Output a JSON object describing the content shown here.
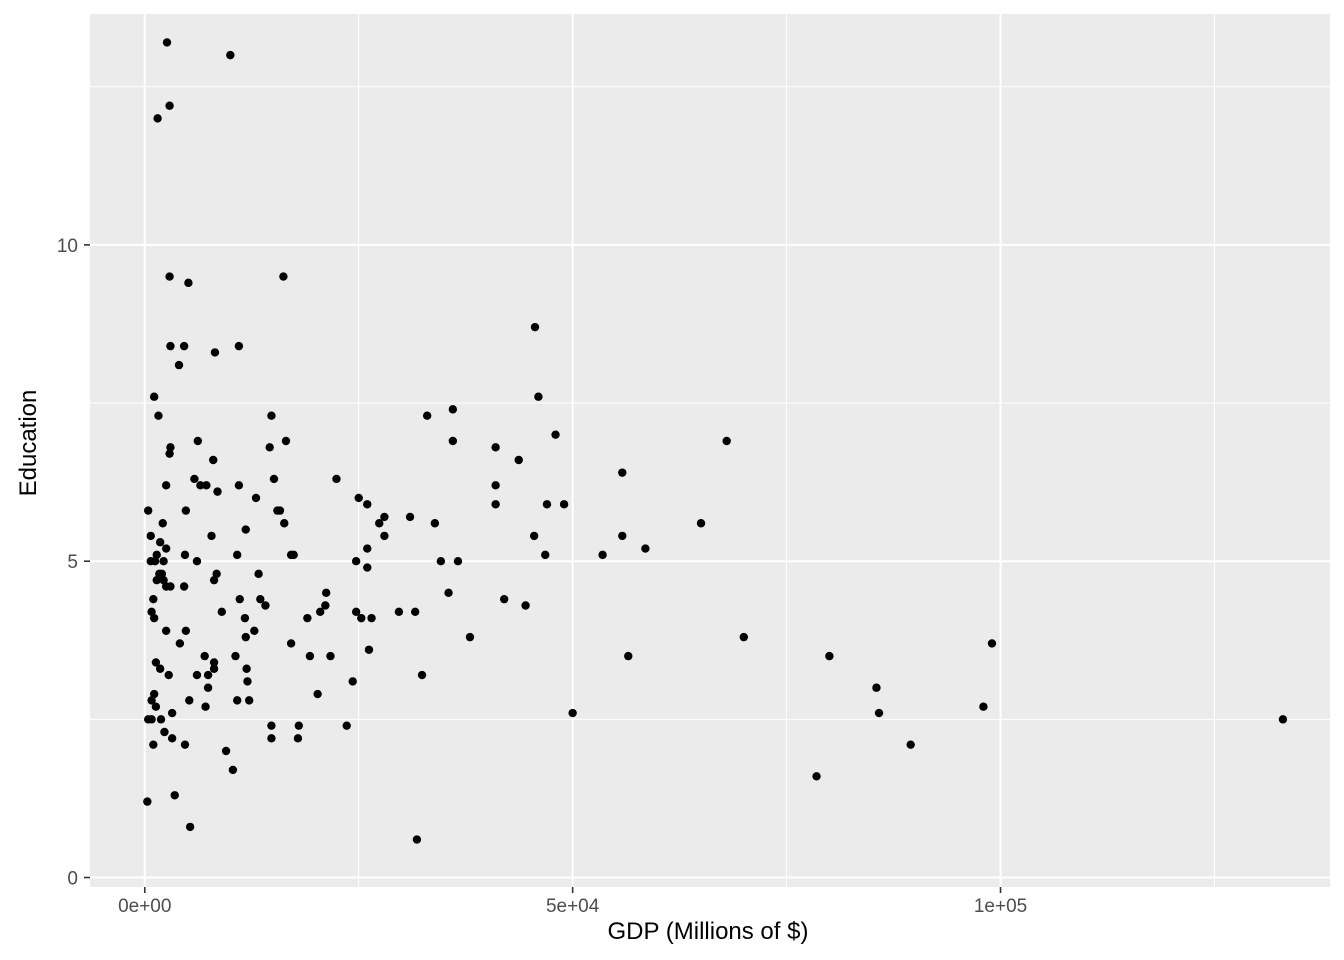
{
  "chart_data": {
    "type": "scatter",
    "title": "",
    "xlabel": "GDP (Millions of $)",
    "ylabel": "Education",
    "xlim": [
      -6400,
      138500
    ],
    "ylim": [
      -0.15,
      13.65
    ],
    "x_ticks": [
      {
        "value": 0,
        "label": "0e+00"
      },
      {
        "value": 50000,
        "label": "5e+04"
      },
      {
        "value": 100000,
        "label": "1e+05"
      }
    ],
    "y_ticks": [
      {
        "value": 0,
        "label": "0"
      },
      {
        "value": 5,
        "label": "5"
      },
      {
        "value": 10,
        "label": "10"
      }
    ],
    "x_minor_grid": [
      -25000,
      25000,
      75000,
      125000
    ],
    "y_minor_grid": [
      2.5,
      7.5,
      12.5
    ],
    "grid": true,
    "panel_color": "#ebebeb",
    "grid_color": "#ffffff",
    "point_color": "#000000",
    "points": [
      [
        2600,
        13.2
      ],
      [
        10000,
        13.0
      ],
      [
        2900,
        12.2
      ],
      [
        1500,
        12.0
      ],
      [
        2900,
        9.5
      ],
      [
        5100,
        9.4
      ],
      [
        16200,
        9.5
      ],
      [
        45600,
        8.7
      ],
      [
        3000,
        8.4
      ],
      [
        4600,
        8.4
      ],
      [
        11000,
        8.4
      ],
      [
        8200,
        8.3
      ],
      [
        4000,
        8.1
      ],
      [
        1100,
        7.6
      ],
      [
        46000,
        7.6
      ],
      [
        1600,
        7.3
      ],
      [
        14800,
        7.3
      ],
      [
        33000,
        7.3
      ],
      [
        36000,
        7.4
      ],
      [
        48000,
        7.0
      ],
      [
        6200,
        6.9
      ],
      [
        16500,
        6.9
      ],
      [
        36000,
        6.9
      ],
      [
        68000,
        6.9
      ],
      [
        3000,
        6.8
      ],
      [
        2900,
        6.7
      ],
      [
        14600,
        6.8
      ],
      [
        41000,
        6.8
      ],
      [
        43700,
        6.6
      ],
      [
        8000,
        6.6
      ],
      [
        55800,
        6.4
      ],
      [
        5800,
        6.3
      ],
      [
        15100,
        6.3
      ],
      [
        22400,
        6.3
      ],
      [
        2500,
        6.2
      ],
      [
        6500,
        6.2
      ],
      [
        7200,
        6.2
      ],
      [
        11000,
        6.2
      ],
      [
        41000,
        6.2
      ],
      [
        8500,
        6.1
      ],
      [
        25000,
        6.0
      ],
      [
        13000,
        6.0
      ],
      [
        26000,
        5.9
      ],
      [
        41000,
        5.9
      ],
      [
        47000,
        5.9
      ],
      [
        49000,
        5.9
      ],
      [
        400,
        5.8
      ],
      [
        4800,
        5.8
      ],
      [
        15500,
        5.8
      ],
      [
        15800,
        5.8
      ],
      [
        28000,
        5.7
      ],
      [
        27400,
        5.6
      ],
      [
        31000,
        5.7
      ],
      [
        2100,
        5.6
      ],
      [
        16300,
        5.6
      ],
      [
        33900,
        5.6
      ],
      [
        65000,
        5.6
      ],
      [
        11800,
        5.5
      ],
      [
        700,
        5.4
      ],
      [
        7800,
        5.4
      ],
      [
        28000,
        5.4
      ],
      [
        45500,
        5.4
      ],
      [
        55800,
        5.4
      ],
      [
        1800,
        5.3
      ],
      [
        2500,
        5.2
      ],
      [
        26000,
        5.2
      ],
      [
        58500,
        5.2
      ],
      [
        1400,
        5.1
      ],
      [
        4700,
        5.1
      ],
      [
        10800,
        5.1
      ],
      [
        17100,
        5.1
      ],
      [
        17400,
        5.1
      ],
      [
        46800,
        5.1
      ],
      [
        53500,
        5.1
      ],
      [
        700,
        5.0
      ],
      [
        1200,
        5.0
      ],
      [
        2200,
        5.0
      ],
      [
        6100,
        5.0
      ],
      [
        24700,
        5.0
      ],
      [
        34600,
        5.0
      ],
      [
        36600,
        5.0
      ],
      [
        26000,
        4.9
      ],
      [
        1700,
        4.8
      ],
      [
        2000,
        4.8
      ],
      [
        8400,
        4.8
      ],
      [
        13300,
        4.8
      ],
      [
        1400,
        4.7
      ],
      [
        2200,
        4.7
      ],
      [
        8100,
        4.7
      ],
      [
        2500,
        4.6
      ],
      [
        3000,
        4.6
      ],
      [
        4600,
        4.6
      ],
      [
        21200,
        4.5
      ],
      [
        35500,
        4.5
      ],
      [
        1000,
        4.4
      ],
      [
        11100,
        4.4
      ],
      [
        13500,
        4.4
      ],
      [
        42000,
        4.4
      ],
      [
        14100,
        4.3
      ],
      [
        21100,
        4.3
      ],
      [
        44500,
        4.3
      ],
      [
        800,
        4.2
      ],
      [
        9000,
        4.2
      ],
      [
        20500,
        4.2
      ],
      [
        24700,
        4.2
      ],
      [
        29700,
        4.2
      ],
      [
        31600,
        4.2
      ],
      [
        1100,
        4.1
      ],
      [
        11700,
        4.1
      ],
      [
        19000,
        4.1
      ],
      [
        25300,
        4.1
      ],
      [
        26500,
        4.1
      ],
      [
        2500,
        3.9
      ],
      [
        4800,
        3.9
      ],
      [
        12800,
        3.9
      ],
      [
        11800,
        3.8
      ],
      [
        38000,
        3.8
      ],
      [
        70000,
        3.8
      ],
      [
        4100,
        3.7
      ],
      [
        17100,
        3.7
      ],
      [
        99000,
        3.7
      ],
      [
        26200,
        3.6
      ],
      [
        7000,
        3.5
      ],
      [
        10600,
        3.5
      ],
      [
        19300,
        3.5
      ],
      [
        21700,
        3.5
      ],
      [
        56500,
        3.5
      ],
      [
        80000,
        3.5
      ],
      [
        1300,
        3.4
      ],
      [
        8100,
        3.4
      ],
      [
        1800,
        3.3
      ],
      [
        8100,
        3.3
      ],
      [
        11900,
        3.3
      ],
      [
        2800,
        3.2
      ],
      [
        6100,
        3.2
      ],
      [
        7400,
        3.2
      ],
      [
        32400,
        3.2
      ],
      [
        12000,
        3.1
      ],
      [
        24300,
        3.1
      ],
      [
        7400,
        3.0
      ],
      [
        85500,
        3.0
      ],
      [
        1100,
        2.9
      ],
      [
        20200,
        2.9
      ],
      [
        800,
        2.8
      ],
      [
        5200,
        2.8
      ],
      [
        10800,
        2.8
      ],
      [
        12200,
        2.8
      ],
      [
        1300,
        2.7
      ],
      [
        7100,
        2.7
      ],
      [
        98000,
        2.7
      ],
      [
        3200,
        2.6
      ],
      [
        50000,
        2.6
      ],
      [
        85800,
        2.6
      ],
      [
        400,
        2.5
      ],
      [
        800,
        2.5
      ],
      [
        1900,
        2.5
      ],
      [
        133000,
        2.5
      ],
      [
        14800,
        2.4
      ],
      [
        18000,
        2.4
      ],
      [
        23600,
        2.4
      ],
      [
        2300,
        2.3
      ],
      [
        3200,
        2.2
      ],
      [
        14800,
        2.2
      ],
      [
        17900,
        2.2
      ],
      [
        1000,
        2.1
      ],
      [
        4700,
        2.1
      ],
      [
        89500,
        2.1
      ],
      [
        9500,
        2.0
      ],
      [
        10300,
        1.7
      ],
      [
        78500,
        1.6
      ],
      [
        3500,
        1.3
      ],
      [
        300,
        1.2
      ],
      [
        5300,
        0.8
      ],
      [
        31800,
        0.6
      ]
    ]
  }
}
